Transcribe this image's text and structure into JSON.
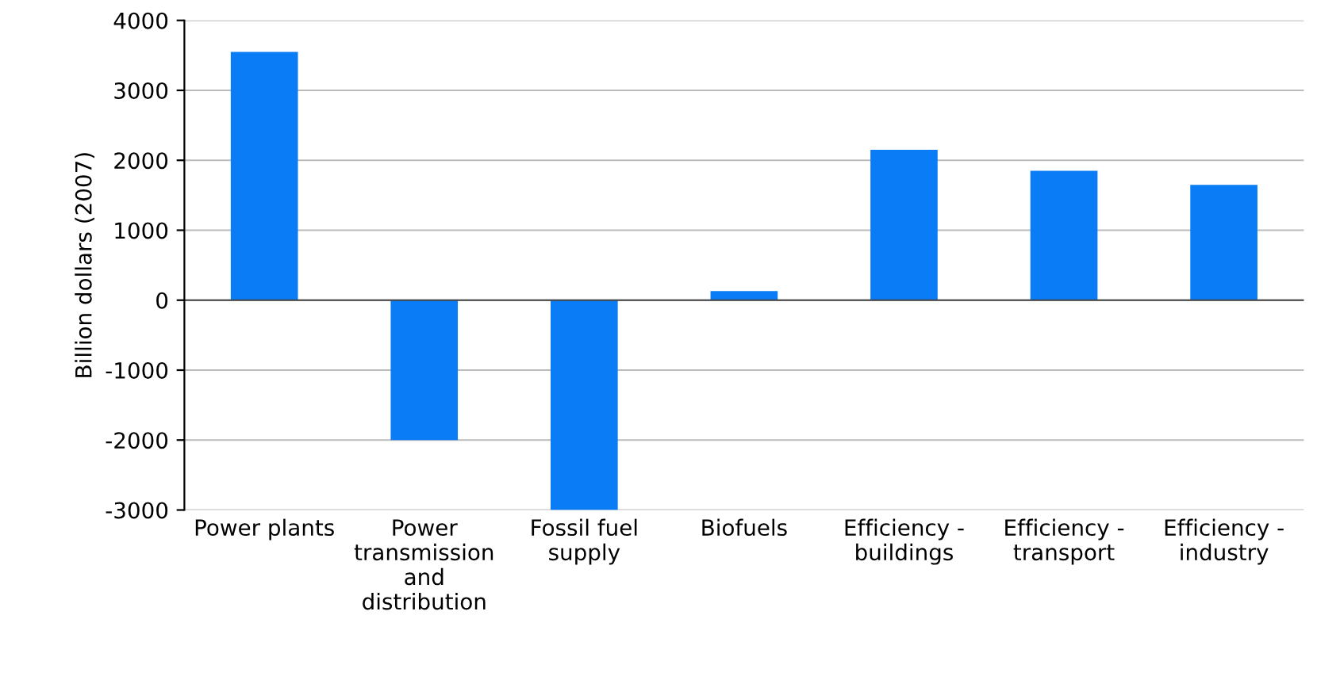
{
  "chart_data": {
    "type": "bar",
    "ylabel": "Billion dollars (2007)",
    "categories": [
      "Power plants",
      "Power\ntransmission\nand\ndistribution",
      "Fossil fuel\nsupply",
      "Biofuels",
      "Efficiency -\nbuildings",
      "Efficiency -\ntransport",
      "Efficiency -\nindustry"
    ],
    "values": [
      3550,
      -2000,
      -3000,
      130,
      2150,
      1850,
      1650
    ],
    "color": "#0a7cf5",
    "ylim": [
      -3000,
      4000
    ],
    "yticks": [
      -3000,
      -2000,
      -1000,
      0,
      1000,
      2000,
      3000,
      4000
    ],
    "grid": "y"
  }
}
